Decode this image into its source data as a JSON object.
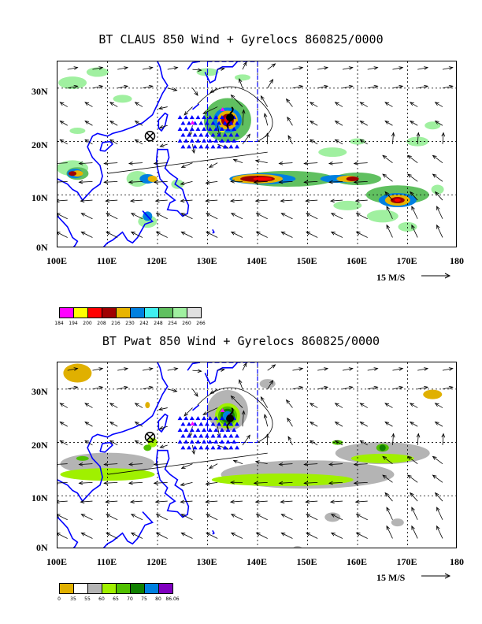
{
  "panel1": {
    "title": "BT CLAUS 850 Wind + Gyrelocs 860825/0000",
    "lat_labels": [
      "30N",
      "20N",
      "10N",
      "0N"
    ],
    "lon_labels": [
      "100E",
      "110E",
      "120E",
      "130E",
      "140E",
      "150E",
      "160E",
      "170E",
      "180"
    ],
    "ref_vector_label": "15 M/S",
    "colorbar": {
      "colors": [
        "#ff00ff",
        "#ffff00",
        "#ff0000",
        "#a00000",
        "#e8b400",
        "#0080e0",
        "#40f0f0",
        "#60c060",
        "#a0f0a0",
        "#e0e0e0"
      ],
      "ticks": [
        "184",
        "194",
        "200",
        "208",
        "216",
        "230",
        "242",
        "248",
        "254",
        "260",
        "266"
      ]
    }
  },
  "panel2": {
    "title": "BT Pwat 850 Wind + Gyrelocs 860825/0000",
    "lat_labels": [
      "30N",
      "20N",
      "10N",
      "0N"
    ],
    "lon_labels": [
      "100E",
      "110E",
      "120E",
      "130E",
      "140E",
      "150E",
      "160E",
      "170E",
      "180"
    ],
    "ref_vector_label": "15 M/S",
    "colorbar": {
      "colors": [
        "#e0b000",
        "#ffffff",
        "#b4b4b4",
        "#a0f000",
        "#50c000",
        "#108000",
        "#0080e0",
        "#8000c0"
      ],
      "ticks": [
        "0",
        "35",
        "55",
        "60",
        "65",
        "70",
        "75",
        "80",
        "86.06"
      ]
    }
  },
  "map_extent": {
    "lon_min": 100,
    "lon_max": 180,
    "lat_min": 0,
    "lat_max": 35
  },
  "colors": {
    "coast": "#0000ff",
    "triangle": "#0000ff",
    "grid": "#000000",
    "storm_marker": "#000000"
  }
}
